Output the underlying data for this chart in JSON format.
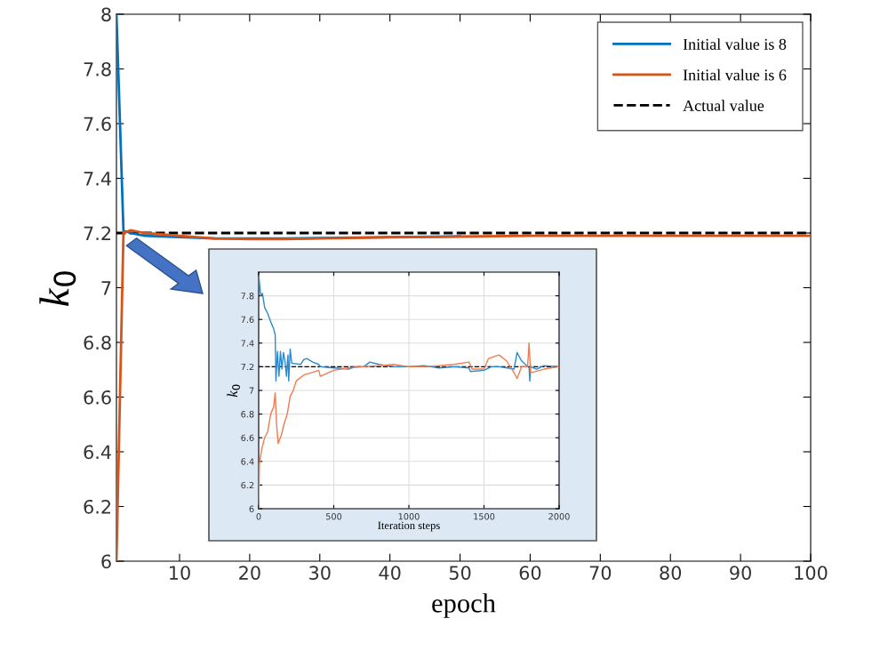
{
  "chart_data": [
    {
      "type": "line",
      "xlabel": "epoch",
      "ylabel": "k$_{0}$",
      "xlim": [
        1,
        100
      ],
      "xticks": [
        10,
        20,
        30,
        40,
        50,
        60,
        70,
        80,
        90,
        100
      ],
      "ylim": [
        6,
        8
      ],
      "yticks": [
        6,
        6.2,
        6.4,
        6.6,
        6.8,
        7,
        7.2,
        7.4,
        7.6,
        7.8,
        8
      ],
      "grid": false,
      "legend": "top right",
      "line_style": "solid",
      "series": [
        {
          "name": "Initial value is 8",
          "color": "#0072bd",
          "x": [
            1,
            2,
            3,
            5,
            10,
            15,
            20,
            25,
            30,
            40,
            50
          ],
          "values": [
            8,
            7.21,
            7.2,
            7.19,
            7.185,
            7.18,
            7.18,
            7.18,
            7.182,
            7.185,
            7.188
          ]
        },
        {
          "name": "Initial value is 6",
          "color": "#d95319",
          "x": [
            1,
            2,
            3,
            5,
            10,
            15,
            20,
            25,
            30,
            40,
            50,
            60,
            70,
            80,
            90,
            100
          ],
          "values": [
            6,
            7.2,
            7.21,
            7.2,
            7.19,
            7.18,
            7.178,
            7.178,
            7.18,
            7.184,
            7.187,
            7.19,
            7.19,
            7.19,
            7.19,
            7.19
          ]
        }
      ],
      "ref_lines": [
        {
          "axis": "y",
          "value": 7.2,
          "label": "Actual value",
          "color": "#000000",
          "line_style": "dashed"
        }
      ]
    },
    {
      "type": "line",
      "xlabel": "Iteration steps",
      "ylabel": "k$_{0}$",
      "xlim": [
        0,
        2000
      ],
      "xticks": [
        0,
        500,
        1000,
        1500,
        2000
      ],
      "ylim": [
        6,
        8
      ],
      "yticks": [
        6,
        6.2,
        6.4,
        6.6,
        6.8,
        7,
        7.2,
        7.4,
        7.6,
        7.8
      ],
      "grid": true,
      "line_style": "solid",
      "series": [
        {
          "color": "#2a8ad0",
          "x": [
            0,
            14,
            25,
            40,
            60,
            80,
            100,
            110,
            115,
            125,
            135,
            145,
            155,
            165,
            175,
            185,
            195,
            200,
            210,
            220,
            280,
            300,
            320,
            360,
            400,
            410,
            500,
            600,
            640,
            700,
            740,
            800,
            900,
            1000,
            1100,
            1200,
            1300,
            1400,
            1410,
            1500,
            1550,
            1600,
            1700,
            1720,
            1750,
            1800,
            1805,
            1810,
            1850,
            1900,
            2000
          ],
          "values": [
            7.98,
            7.8,
            7.82,
            7.7,
            7.65,
            7.58,
            7.52,
            7.47,
            7.08,
            7.33,
            7.12,
            7.33,
            7.18,
            7.32,
            7.25,
            7.12,
            7.3,
            7.08,
            7.35,
            7.23,
            7.22,
            7.26,
            7.27,
            7.24,
            7.22,
            7.2,
            7.19,
            7.18,
            7.2,
            7.2,
            7.24,
            7.22,
            7.2,
            7.2,
            7.21,
            7.19,
            7.2,
            7.19,
            7.16,
            7.17,
            7.2,
            7.2,
            7.18,
            7.32,
            7.25,
            7.19,
            7.08,
            7.2,
            7.18,
            7.21,
            7.2
          ]
        },
        {
          "color": "#f07b50",
          "x": [
            0,
            5,
            20,
            40,
            60,
            80,
            100,
            110,
            120,
            130,
            150,
            170,
            190,
            210,
            230,
            250,
            300,
            350,
            400,
            410,
            500,
            600,
            700,
            800,
            900,
            1000,
            1100,
            1200,
            1300,
            1400,
            1420,
            1500,
            1530,
            1600,
            1650,
            1700,
            1720,
            1750,
            1790,
            1800,
            1810,
            1900,
            2000
          ],
          "values": [
            6.0,
            6.38,
            6.5,
            6.6,
            6.65,
            6.8,
            6.86,
            6.98,
            6.7,
            6.55,
            6.62,
            6.72,
            6.8,
            6.95,
            7.0,
            7.08,
            7.13,
            7.15,
            7.17,
            7.12,
            7.17,
            7.19,
            7.2,
            7.21,
            7.22,
            7.2,
            7.2,
            7.21,
            7.22,
            7.24,
            7.18,
            7.18,
            7.27,
            7.3,
            7.25,
            7.15,
            7.1,
            7.2,
            7.2,
            7.4,
            7.15,
            7.18,
            7.2
          ]
        }
      ],
      "ref_lines": [
        {
          "axis": "y",
          "value": 7.2,
          "color": "#000000",
          "line_style": "dashed"
        }
      ]
    }
  ]
}
